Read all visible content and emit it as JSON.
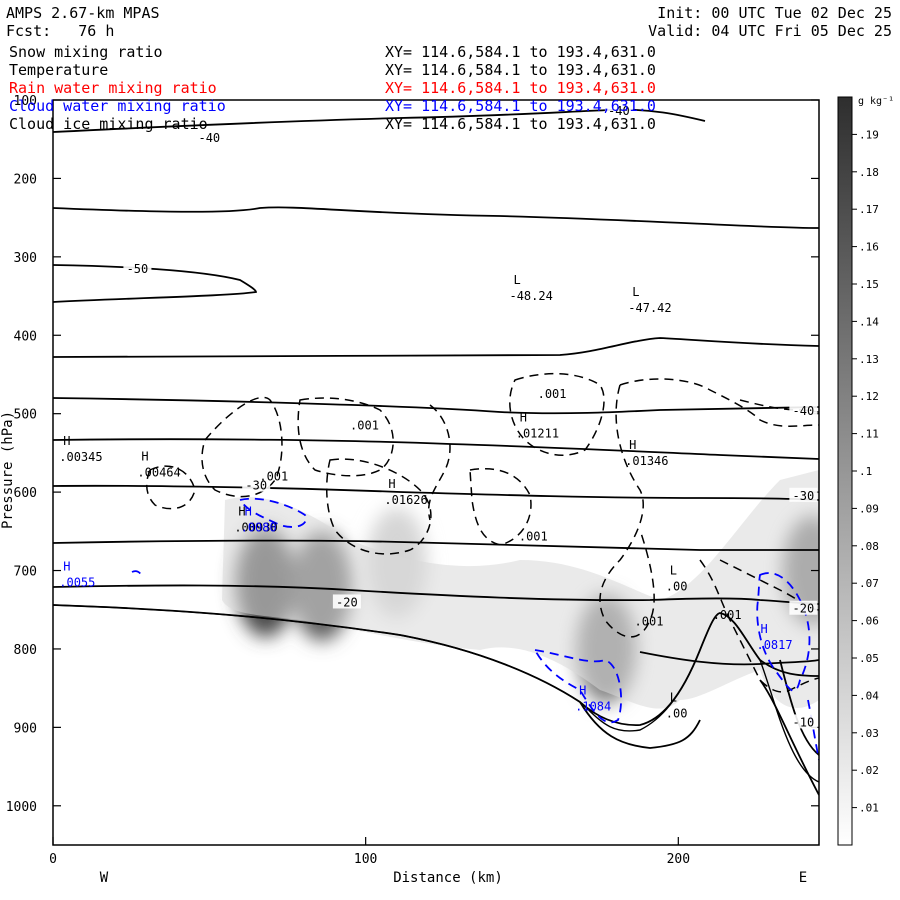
{
  "header": {
    "model": "AMPS 2.67-km MPAS",
    "init": "Init: 00 UTC Tue 02 Dec 25",
    "fcst": "Fcst:   76 h",
    "valid": "Valid: 04 UTC Fri 05 Dec 25"
  },
  "fields": [
    {
      "name": "Snow mixing ratio",
      "xy": "XY= 114.6,584.1 to 193.4,631.0",
      "color": "#000000"
    },
    {
      "name": "Temperature",
      "xy": "XY= 114.6,584.1 to 193.4,631.0",
      "color": "#000000"
    },
    {
      "name": "Rain water mixing ratio",
      "xy": "XY= 114.6,584.1 to 193.4,631.0",
      "color": "#ff0000"
    },
    {
      "name": "Cloud water mixing ratio",
      "xy": "XY= 114.6,584.1 to 193.4,631.0",
      "color": "#0000ff"
    },
    {
      "name": "Cloud ice mixing ratio",
      "xy": "XY= 114.6,584.1 to 193.4,631.0",
      "color": "#000000"
    }
  ],
  "chart_data": {
    "type": "heatmap",
    "xlabel": "Distance (km)",
    "ylabel": "Pressure (hPa)",
    "xlim": [
      0,
      245
    ],
    "ylim": [
      1050,
      100
    ],
    "x_ticks": [
      0,
      100,
      200
    ],
    "y_ticks": [
      100,
      200,
      300,
      400,
      500,
      600,
      700,
      800,
      900,
      1000
    ],
    "x_end_labels": {
      "left": "W",
      "right": "E"
    },
    "colorbar": {
      "unit": "g kg⁻¹",
      "levels": [
        ".01",
        ".02",
        ".03",
        ".04",
        ".05",
        ".06",
        ".07",
        ".08",
        ".09",
        ".1",
        ".11",
        ".12",
        ".13",
        ".14",
        ".15",
        ".16",
        ".17",
        ".18",
        ".19"
      ]
    },
    "snow_cores": [
      {
        "x": 68,
        "p": 715,
        "v": 0.17
      },
      {
        "x": 86,
        "p": 720,
        "v": 0.15
      },
      {
        "x": 177,
        "p": 800,
        "v": 0.12
      },
      {
        "x": 243,
        "p": 700,
        "v": 0.13
      },
      {
        "x": 110,
        "p": 690,
        "v": 0.04
      }
    ],
    "temperature_contour_labels": [
      {
        "text": "-40",
        "x": 50,
        "p": 150
      },
      {
        "text": "-40",
        "x": 181,
        "p": 115
      },
      {
        "text": "-50",
        "x": 27,
        "p": 317
      },
      {
        "text": "-40",
        "x": 240,
        "p": 498
      },
      {
        "text": "-30",
        "x": 65,
        "p": 593
      },
      {
        "text": "-30",
        "x": 240,
        "p": 606
      },
      {
        "text": "-20",
        "x": 94,
        "p": 742
      },
      {
        "text": "-20",
        "x": 240,
        "p": 750
      },
      {
        "text": "-10",
        "x": 240,
        "p": 895
      }
    ],
    "extrema": [
      {
        "type": "L",
        "value": "-48.24",
        "x": 146,
        "p": 345,
        "color": "#000000"
      },
      {
        "type": "L",
        "value": "-47.42",
        "x": 184,
        "p": 360,
        "color": "#000000"
      },
      {
        "type": "H",
        "value": ".01211",
        "x": 148,
        "p": 520,
        "color": "#000000"
      },
      {
        "type": "H",
        "value": ".01346",
        "x": 183,
        "p": 555,
        "color": "#000000"
      },
      {
        "type": "H",
        "value": ".00345",
        "x": 2,
        "p": 550,
        "color": "#000000"
      },
      {
        "type": "H",
        "value": ".00464",
        "x": 27,
        "p": 570,
        "color": "#000000"
      },
      {
        "type": "H",
        "value": ".01626",
        "x": 106,
        "p": 605,
        "color": "#000000"
      },
      {
        "type": "H",
        "value": ".00930",
        "x": 58,
        "p": 640,
        "color": "#000000"
      },
      {
        "type": "H",
        "value": ".0080",
        "x": 60,
        "p": 640,
        "color": "#0000ff"
      },
      {
        "type": "H",
        "value": ".0055",
        "x": 2,
        "p": 710,
        "color": "#0000ff"
      },
      {
        "type": "H",
        "value": ".1084",
        "x": 167,
        "p": 868,
        "color": "#0000ff"
      },
      {
        "type": "H",
        "value": ".0817",
        "x": 225,
        "p": 790,
        "color": "#0000ff"
      },
      {
        "type": "L",
        "value": ".00",
        "x": 196,
        "p": 715,
        "color": "#000000"
      },
      {
        "type": "L",
        "value": ".00",
        "x": 196,
        "p": 877,
        "color": "#000000"
      }
    ],
    "ice_contour_labels": [
      {
        "text": ".001",
        "x": 95,
        "p": 520
      },
      {
        "text": ".001",
        "x": 66,
        "p": 585
      },
      {
        "text": ".001",
        "x": 155,
        "p": 480
      },
      {
        "text": ".001",
        "x": 149,
        "p": 662
      },
      {
        "text": ".001",
        "x": 186,
        "p": 770
      },
      {
        "text": ".001",
        "x": 211,
        "p": 762
      }
    ]
  }
}
